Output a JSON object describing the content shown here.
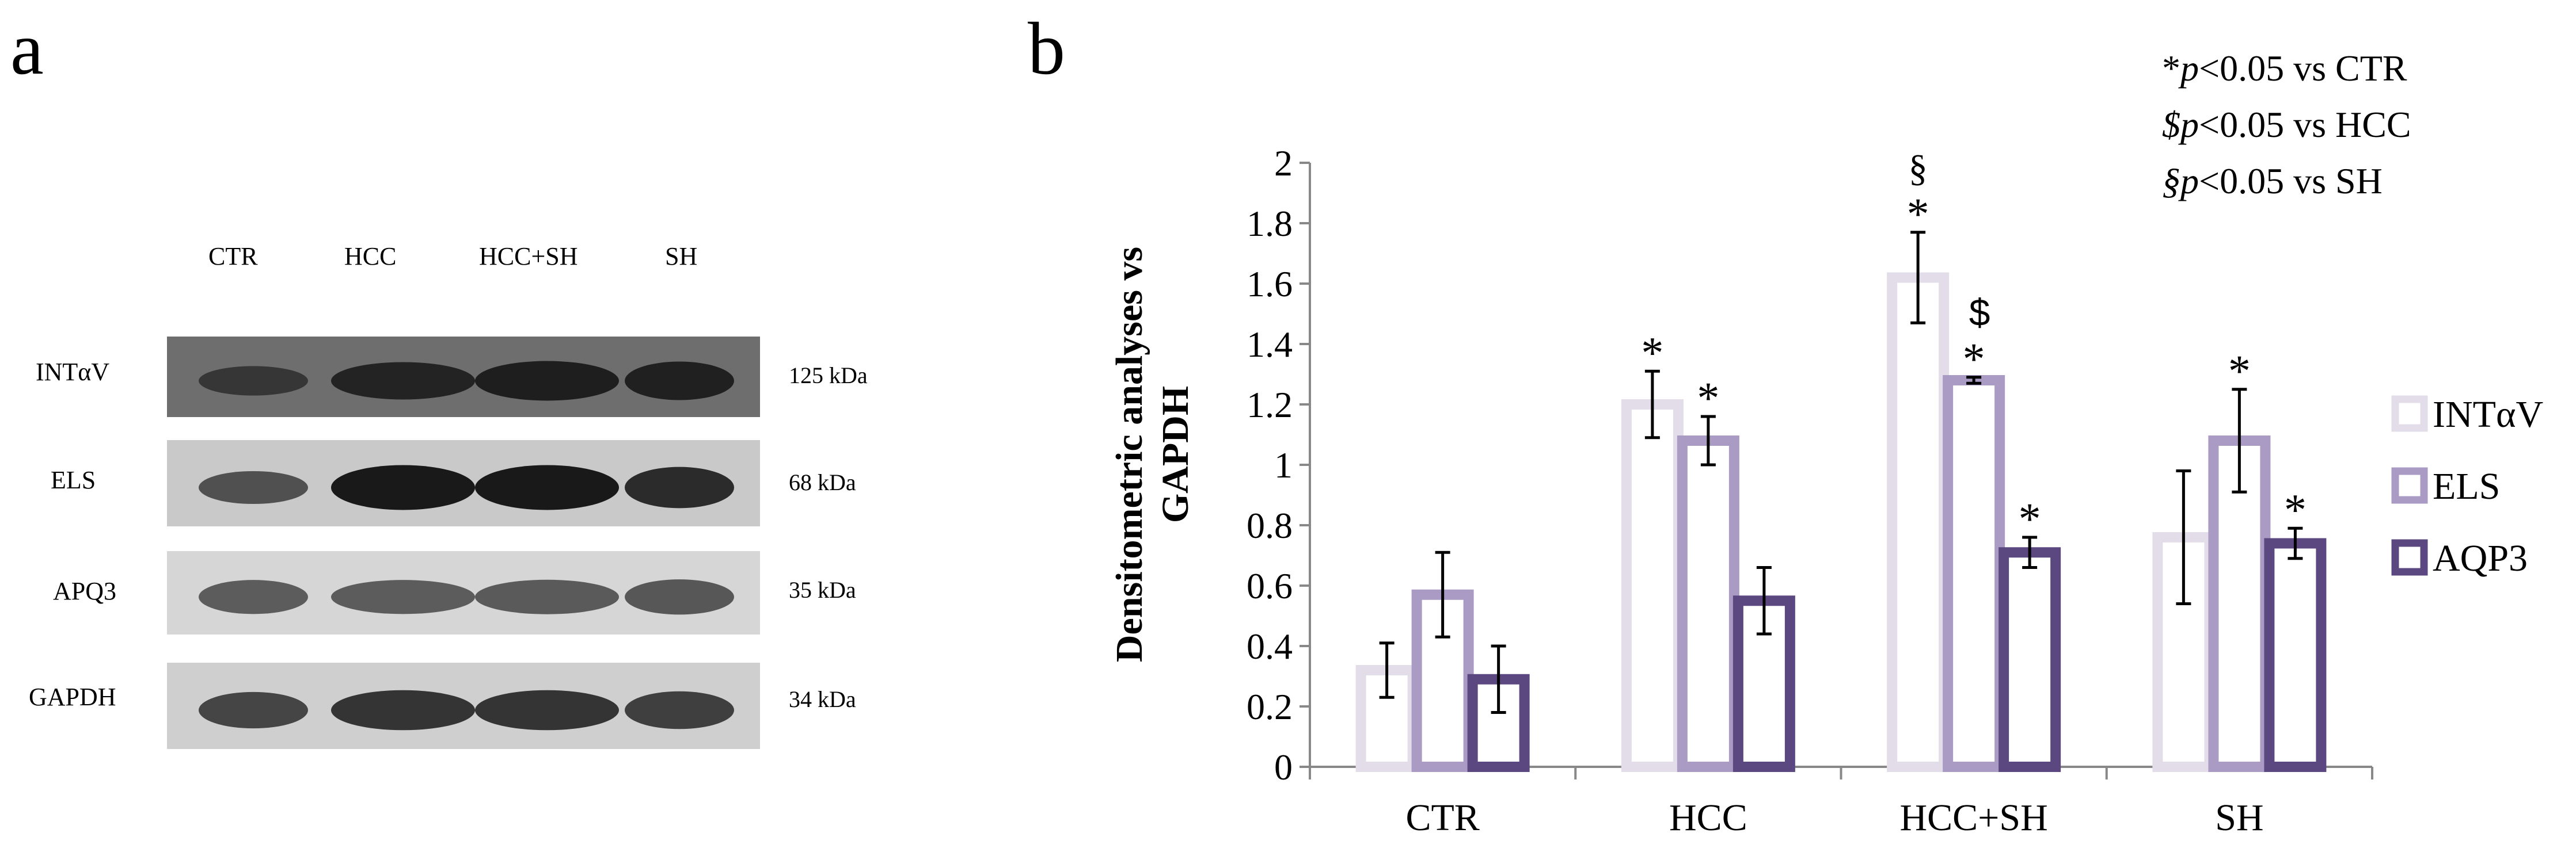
{
  "panel_a": {
    "label": "a",
    "lanes": [
      "CTR",
      "HCC",
      "HCC+SH",
      "SH"
    ],
    "blots": [
      {
        "protein": "INTαV",
        "size": "125 kDa",
        "bg": "#6e6e6e",
        "band": "#141414",
        "intensity": [
          0.45,
          0.8,
          0.9,
          0.85
        ]
      },
      {
        "protein": "ELS",
        "size": "68 kDa",
        "bg": "#c9c9c9",
        "band": "#101010",
        "intensity": [
          0.5,
          1.0,
          1.0,
          0.85
        ]
      },
      {
        "protein": "APQ3",
        "size": "35 kDa",
        "bg": "#d6d6d6",
        "band": "#2a2a2a",
        "intensity": [
          0.6,
          0.6,
          0.62,
          0.65
        ]
      },
      {
        "protein": "GAPDH",
        "size": "34 kDa",
        "bg": "#cfcfcf",
        "band": "#141414",
        "intensity": [
          0.65,
          0.8,
          0.8,
          0.7
        ]
      }
    ]
  },
  "panel_b": {
    "label": "b",
    "significance_notes": [
      {
        "symbol": "*",
        "italic": "p",
        "rest": "<0.05 vs CTR"
      },
      {
        "symbol": "$",
        "italic": "p",
        "rest": "<0.05 vs HCC"
      },
      {
        "symbol": "§",
        "italic": "p",
        "rest": "<0.05 vs SH"
      }
    ]
  },
  "chart_data": {
    "type": "bar",
    "title": "",
    "xlabel": "",
    "ylabel": "Densitometric  analyses vs GAPDH",
    "ylabel_lines": [
      "Densitometric  analyses vs",
      "GAPDH"
    ],
    "ylim": [
      0,
      2
    ],
    "yticks": [
      "0",
      "0.2",
      "0.4",
      "0.6",
      "0.8",
      "1",
      "1.2",
      "1.4",
      "1.6",
      "1.8",
      "2"
    ],
    "categories": [
      "CTR",
      "HCC",
      "HCC+SH",
      "SH"
    ],
    "legend_position": "right",
    "series": [
      {
        "name": "INTαV",
        "color": "#e2dde9",
        "values": [
          0.32,
          1.2,
          1.62,
          0.76
        ],
        "errors": [
          0.09,
          0.11,
          0.15,
          0.22
        ],
        "marks": [
          "",
          "*",
          "*§",
          ""
        ]
      },
      {
        "name": "ELS",
        "color": "#a99bc4",
        "values": [
          0.57,
          1.08,
          1.28,
          1.08
        ],
        "errors": [
          0.14,
          0.08,
          0.01,
          0.17
        ],
        "marks": [
          "",
          "*",
          "*$",
          "*"
        ]
      },
      {
        "name": "AQP3",
        "color": "#5c4880",
        "values": [
          0.29,
          0.55,
          0.71,
          0.74
        ],
        "errors": [
          0.11,
          0.11,
          0.05,
          0.05
        ],
        "marks": [
          "",
          "",
          "*",
          "*"
        ]
      }
    ]
  }
}
